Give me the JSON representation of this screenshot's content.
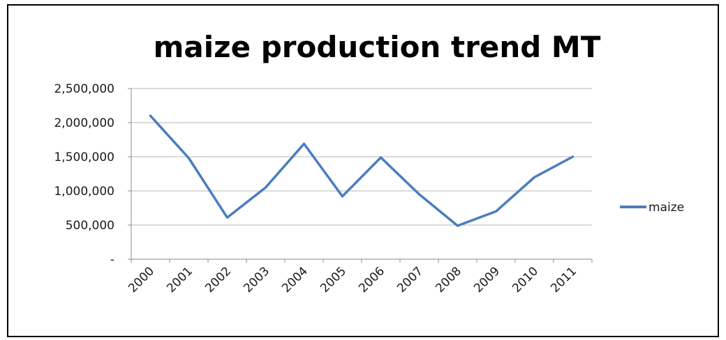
{
  "colors": {
    "series": "#4a7ebb",
    "grid": "#b7b7b7",
    "axis": "#8a8a8a",
    "frame": "#000000"
  },
  "chart_data": {
    "type": "line",
    "title": "maize production trend MT",
    "xlabel": "",
    "ylabel": "",
    "x": [
      "2000",
      "2001",
      "2002",
      "2003",
      "2004",
      "2005",
      "2006",
      "2007",
      "2008",
      "2009",
      "2010",
      "2011"
    ],
    "series": [
      {
        "name": "maize",
        "values": [
          2100000,
          1480000,
          610000,
          1050000,
          1690000,
          920000,
          1490000,
          950000,
          490000,
          700000,
          1200000,
          1500000
        ]
      }
    ],
    "ylim": [
      0,
      2500000
    ],
    "y_ticks": [
      0,
      500000,
      1000000,
      1500000,
      2000000,
      2500000
    ],
    "y_tick_labels": [
      "-",
      "500,000",
      "1,000,000",
      "1,500,000",
      "2,000,000",
      "2,500,000"
    ],
    "grid": true,
    "legend": "right"
  }
}
